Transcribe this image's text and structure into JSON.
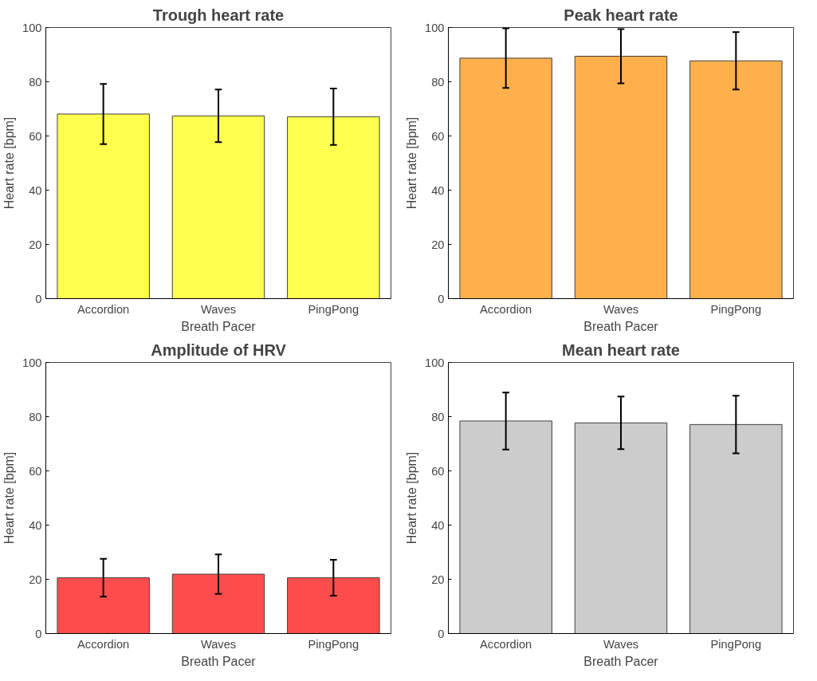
{
  "chart_data": [
    {
      "type": "bar",
      "title": "Trough heart rate",
      "xlabel": "Breath Pacer",
      "ylabel": "Heart rate [bpm]",
      "categories": [
        "Accordion",
        "Waves",
        "PingPong"
      ],
      "values": [
        68.1,
        67.4,
        67.1
      ],
      "errors": [
        11.1,
        9.7,
        10.4
      ],
      "color": "#ffff4d",
      "ylim": [
        0,
        100
      ],
      "yticks": [
        0,
        20,
        40,
        60,
        80,
        100
      ],
      "grid": false
    },
    {
      "type": "bar",
      "title": "Peak heart rate",
      "xlabel": "Breath Pacer",
      "ylabel": "Heart rate [bpm]",
      "categories": [
        "Accordion",
        "Waves",
        "PingPong"
      ],
      "values": [
        88.7,
        89.4,
        87.7
      ],
      "errors": [
        11,
        10,
        10.6
      ],
      "color": "#ffb04d",
      "ylim": [
        0,
        100
      ],
      "yticks": [
        0,
        20,
        40,
        60,
        80,
        100
      ],
      "grid": false
    },
    {
      "type": "bar",
      "title": "Amplitude of HRV",
      "xlabel": "Breath Pacer",
      "ylabel": "Heart rate [bpm]",
      "categories": [
        "Accordion",
        "Waves",
        "PingPong"
      ],
      "values": [
        20.6,
        21.9,
        20.6
      ],
      "errors": [
        7,
        7.3,
        6.6
      ],
      "color": "#ff4d4d",
      "ylim": [
        0,
        100
      ],
      "yticks": [
        0,
        20,
        40,
        60,
        80,
        100
      ],
      "grid": false
    },
    {
      "type": "bar",
      "title": "Mean heart rate",
      "xlabel": "Breath Pacer",
      "ylabel": "Heart rate [bpm]",
      "categories": [
        "Accordion",
        "Waves",
        "PingPong"
      ],
      "values": [
        78.4,
        77.7,
        77.1
      ],
      "errors": [
        10.5,
        9.7,
        10.6
      ],
      "color": "#cccccc",
      "ylim": [
        0,
        100
      ],
      "yticks": [
        0,
        20,
        40,
        60,
        80,
        100
      ],
      "grid": false
    }
  ]
}
